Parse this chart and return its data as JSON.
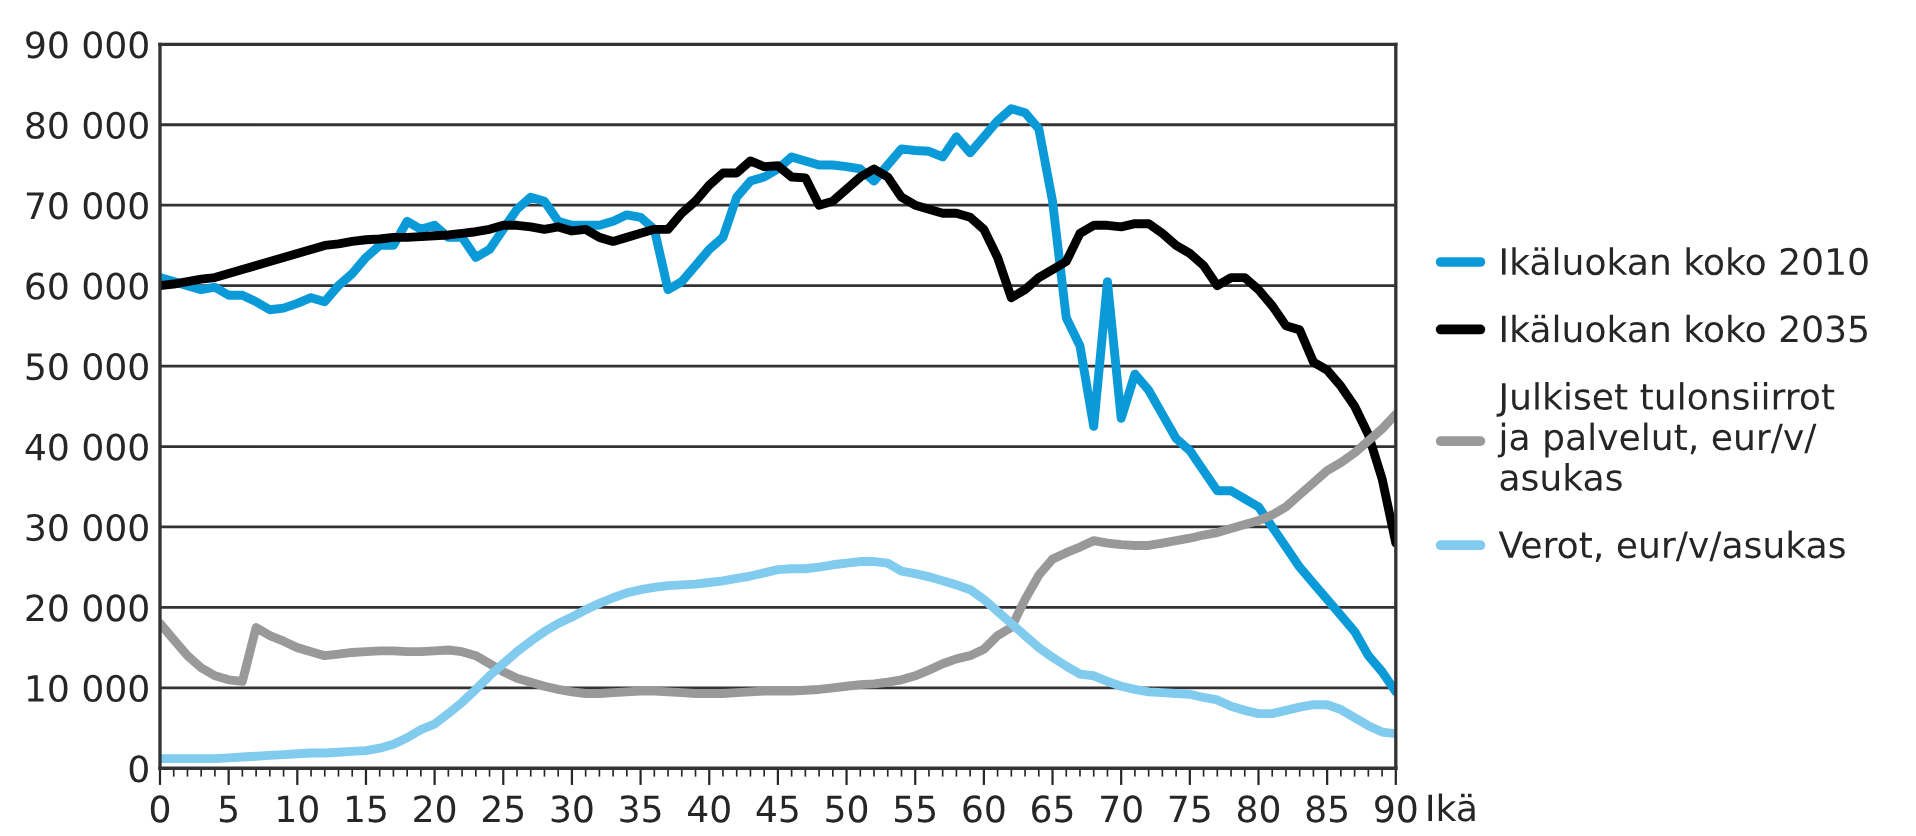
{
  "chart_data": {
    "type": "line",
    "xlabel": "Ikä",
    "x": [
      0,
      1,
      2,
      3,
      4,
      5,
      6,
      7,
      8,
      9,
      10,
      11,
      12,
      13,
      14,
      15,
      16,
      17,
      18,
      19,
      20,
      21,
      22,
      23,
      24,
      25,
      26,
      27,
      28,
      29,
      30,
      31,
      32,
      33,
      34,
      35,
      36,
      37,
      38,
      39,
      40,
      41,
      42,
      43,
      44,
      45,
      46,
      47,
      48,
      49,
      50,
      51,
      52,
      53,
      54,
      55,
      56,
      57,
      58,
      59,
      60,
      61,
      62,
      63,
      64,
      65,
      66,
      67,
      68,
      69,
      70,
      71,
      72,
      73,
      74,
      75,
      76,
      77,
      78,
      79,
      80,
      81,
      82,
      83,
      84,
      85,
      86,
      87,
      88,
      89,
      90
    ],
    "series": [
      {
        "name": "Ikäluokan koko 2010",
        "color": "#0a9ad8",
        "values": [
          61000,
          60500,
          60000,
          59500,
          59800,
          58800,
          58800,
          58000,
          57000,
          57200,
          57800,
          58500,
          58000,
          60000,
          61500,
          63500,
          65000,
          65000,
          68000,
          67000,
          67500,
          66000,
          66000,
          63500,
          64500,
          67000,
          69500,
          71000,
          70500,
          68000,
          67500,
          67500,
          67500,
          68000,
          68800,
          68500,
          67000,
          59500,
          60500,
          62500,
          64500,
          66000,
          71000,
          73000,
          73500,
          74500,
          76000,
          75500,
          75000,
          75000,
          74800,
          74500,
          73000,
          75000,
          77000,
          76800,
          76700,
          76000,
          78500,
          76500,
          78500,
          80500,
          82000,
          81500,
          79500,
          70500,
          56000,
          52500,
          42500,
          60500,
          43500,
          49000,
          47000,
          44000,
          41000,
          39500,
          37000,
          34500,
          34500,
          33500,
          32500,
          30000,
          27500,
          25000,
          23000,
          21000,
          19000,
          17000,
          14000,
          12000,
          9500
        ]
      },
      {
        "name": "Ikäluokan koko 2035",
        "color": "#000000",
        "values": [
          60000,
          60200,
          60500,
          60800,
          61000,
          61500,
          62000,
          62500,
          63000,
          63500,
          64000,
          64500,
          65000,
          65200,
          65500,
          65700,
          65800,
          66000,
          66000,
          66100,
          66200,
          66300,
          66500,
          66700,
          67000,
          67500,
          67500,
          67300,
          67000,
          67300,
          66800,
          67000,
          66000,
          65500,
          66000,
          66500,
          67000,
          67000,
          69000,
          70500,
          72500,
          74000,
          74000,
          75500,
          74800,
          74900,
          73500,
          73400,
          70000,
          70500,
          72000,
          73500,
          74500,
          73500,
          71000,
          70000,
          69500,
          69000,
          69000,
          68500,
          67000,
          63500,
          58500,
          59500,
          61000,
          62000,
          63000,
          66500,
          67500,
          67500,
          67300,
          67700,
          67700,
          66500,
          65000,
          64000,
          62500,
          60000,
          61000,
          61000,
          59500,
          57500,
          55000,
          54500,
          50500,
          49500,
          47500,
          45000,
          41500,
          36000,
          28000
        ]
      },
      {
        "name": "Julkiset tulonsiirrot\nja palvelut, eur/v/\nasukas",
        "color": "#999999",
        "values": [
          18000,
          16000,
          14000,
          12500,
          11500,
          11000,
          10800,
          17500,
          16500,
          15800,
          15000,
          14500,
          14000,
          14200,
          14400,
          14500,
          14600,
          14600,
          14500,
          14500,
          14600,
          14700,
          14500,
          14000,
          13000,
          12000,
          11200,
          10700,
          10200,
          9800,
          9500,
          9300,
          9300,
          9400,
          9500,
          9600,
          9600,
          9500,
          9400,
          9300,
          9300,
          9300,
          9400,
          9500,
          9600,
          9600,
          9600,
          9700,
          9800,
          10000,
          10200,
          10400,
          10500,
          10700,
          11000,
          11500,
          12200,
          13000,
          13600,
          14000,
          14800,
          16500,
          17500,
          21000,
          24000,
          26000,
          26800,
          27500,
          28300,
          28000,
          27800,
          27700,
          27700,
          28000,
          28300,
          28600,
          29000,
          29300,
          29800,
          30300,
          30800,
          31500,
          32500,
          34000,
          35500,
          37000,
          38000,
          39200,
          40700,
          42200,
          44000
        ]
      },
      {
        "name": "Verot, eur/v/asukas",
        "color": "#80cbee",
        "values": [
          1200,
          1200,
          1200,
          1200,
          1200,
          1300,
          1400,
          1500,
          1600,
          1700,
          1800,
          1900,
          1900,
          2000,
          2100,
          2200,
          2500,
          3000,
          3800,
          4800,
          5500,
          6800,
          8200,
          9800,
          11500,
          13000,
          14500,
          15800,
          17000,
          18000,
          18800,
          19700,
          20500,
          21200,
          21800,
          22200,
          22500,
          22700,
          22800,
          22900,
          23100,
          23300,
          23600,
          23900,
          24300,
          24700,
          24800,
          24800,
          25000,
          25300,
          25500,
          25700,
          25700,
          25500,
          24500,
          24200,
          23800,
          23300,
          22800,
          22200,
          21000,
          19500,
          18000,
          16500,
          15000,
          13800,
          12700,
          11700,
          11500,
          10800,
          10200,
          9800,
          9500,
          9400,
          9300,
          9200,
          8800,
          8500,
          7700,
          7200,
          6800,
          6800,
          7200,
          7600,
          7900,
          7900,
          7300,
          6300,
          5300,
          4500,
          4300
        ]
      }
    ],
    "xlim": [
      0,
      90
    ],
    "xticks": [
      0,
      5,
      10,
      15,
      20,
      25,
      30,
      35,
      40,
      45,
      50,
      55,
      60,
      65,
      70,
      75,
      80,
      85,
      90
    ],
    "ylim": [
      0,
      90000
    ],
    "yticks": [
      {
        "value": 0,
        "label": "0"
      },
      {
        "value": 10000,
        "label": "10 000"
      },
      {
        "value": 20000,
        "label": "20 000"
      },
      {
        "value": 30000,
        "label": "30 000"
      },
      {
        "value": 40000,
        "label": "40 000"
      },
      {
        "value": 50000,
        "label": "50 000"
      },
      {
        "value": 60000,
        "label": "60 000"
      },
      {
        "value": 70000,
        "label": "70 000"
      },
      {
        "value": 80000,
        "label": "80 000"
      },
      {
        "value": 90000,
        "label": "90 000"
      }
    ],
    "grid": "y",
    "legend": "right",
    "marker": "none",
    "line_style": "solid"
  }
}
